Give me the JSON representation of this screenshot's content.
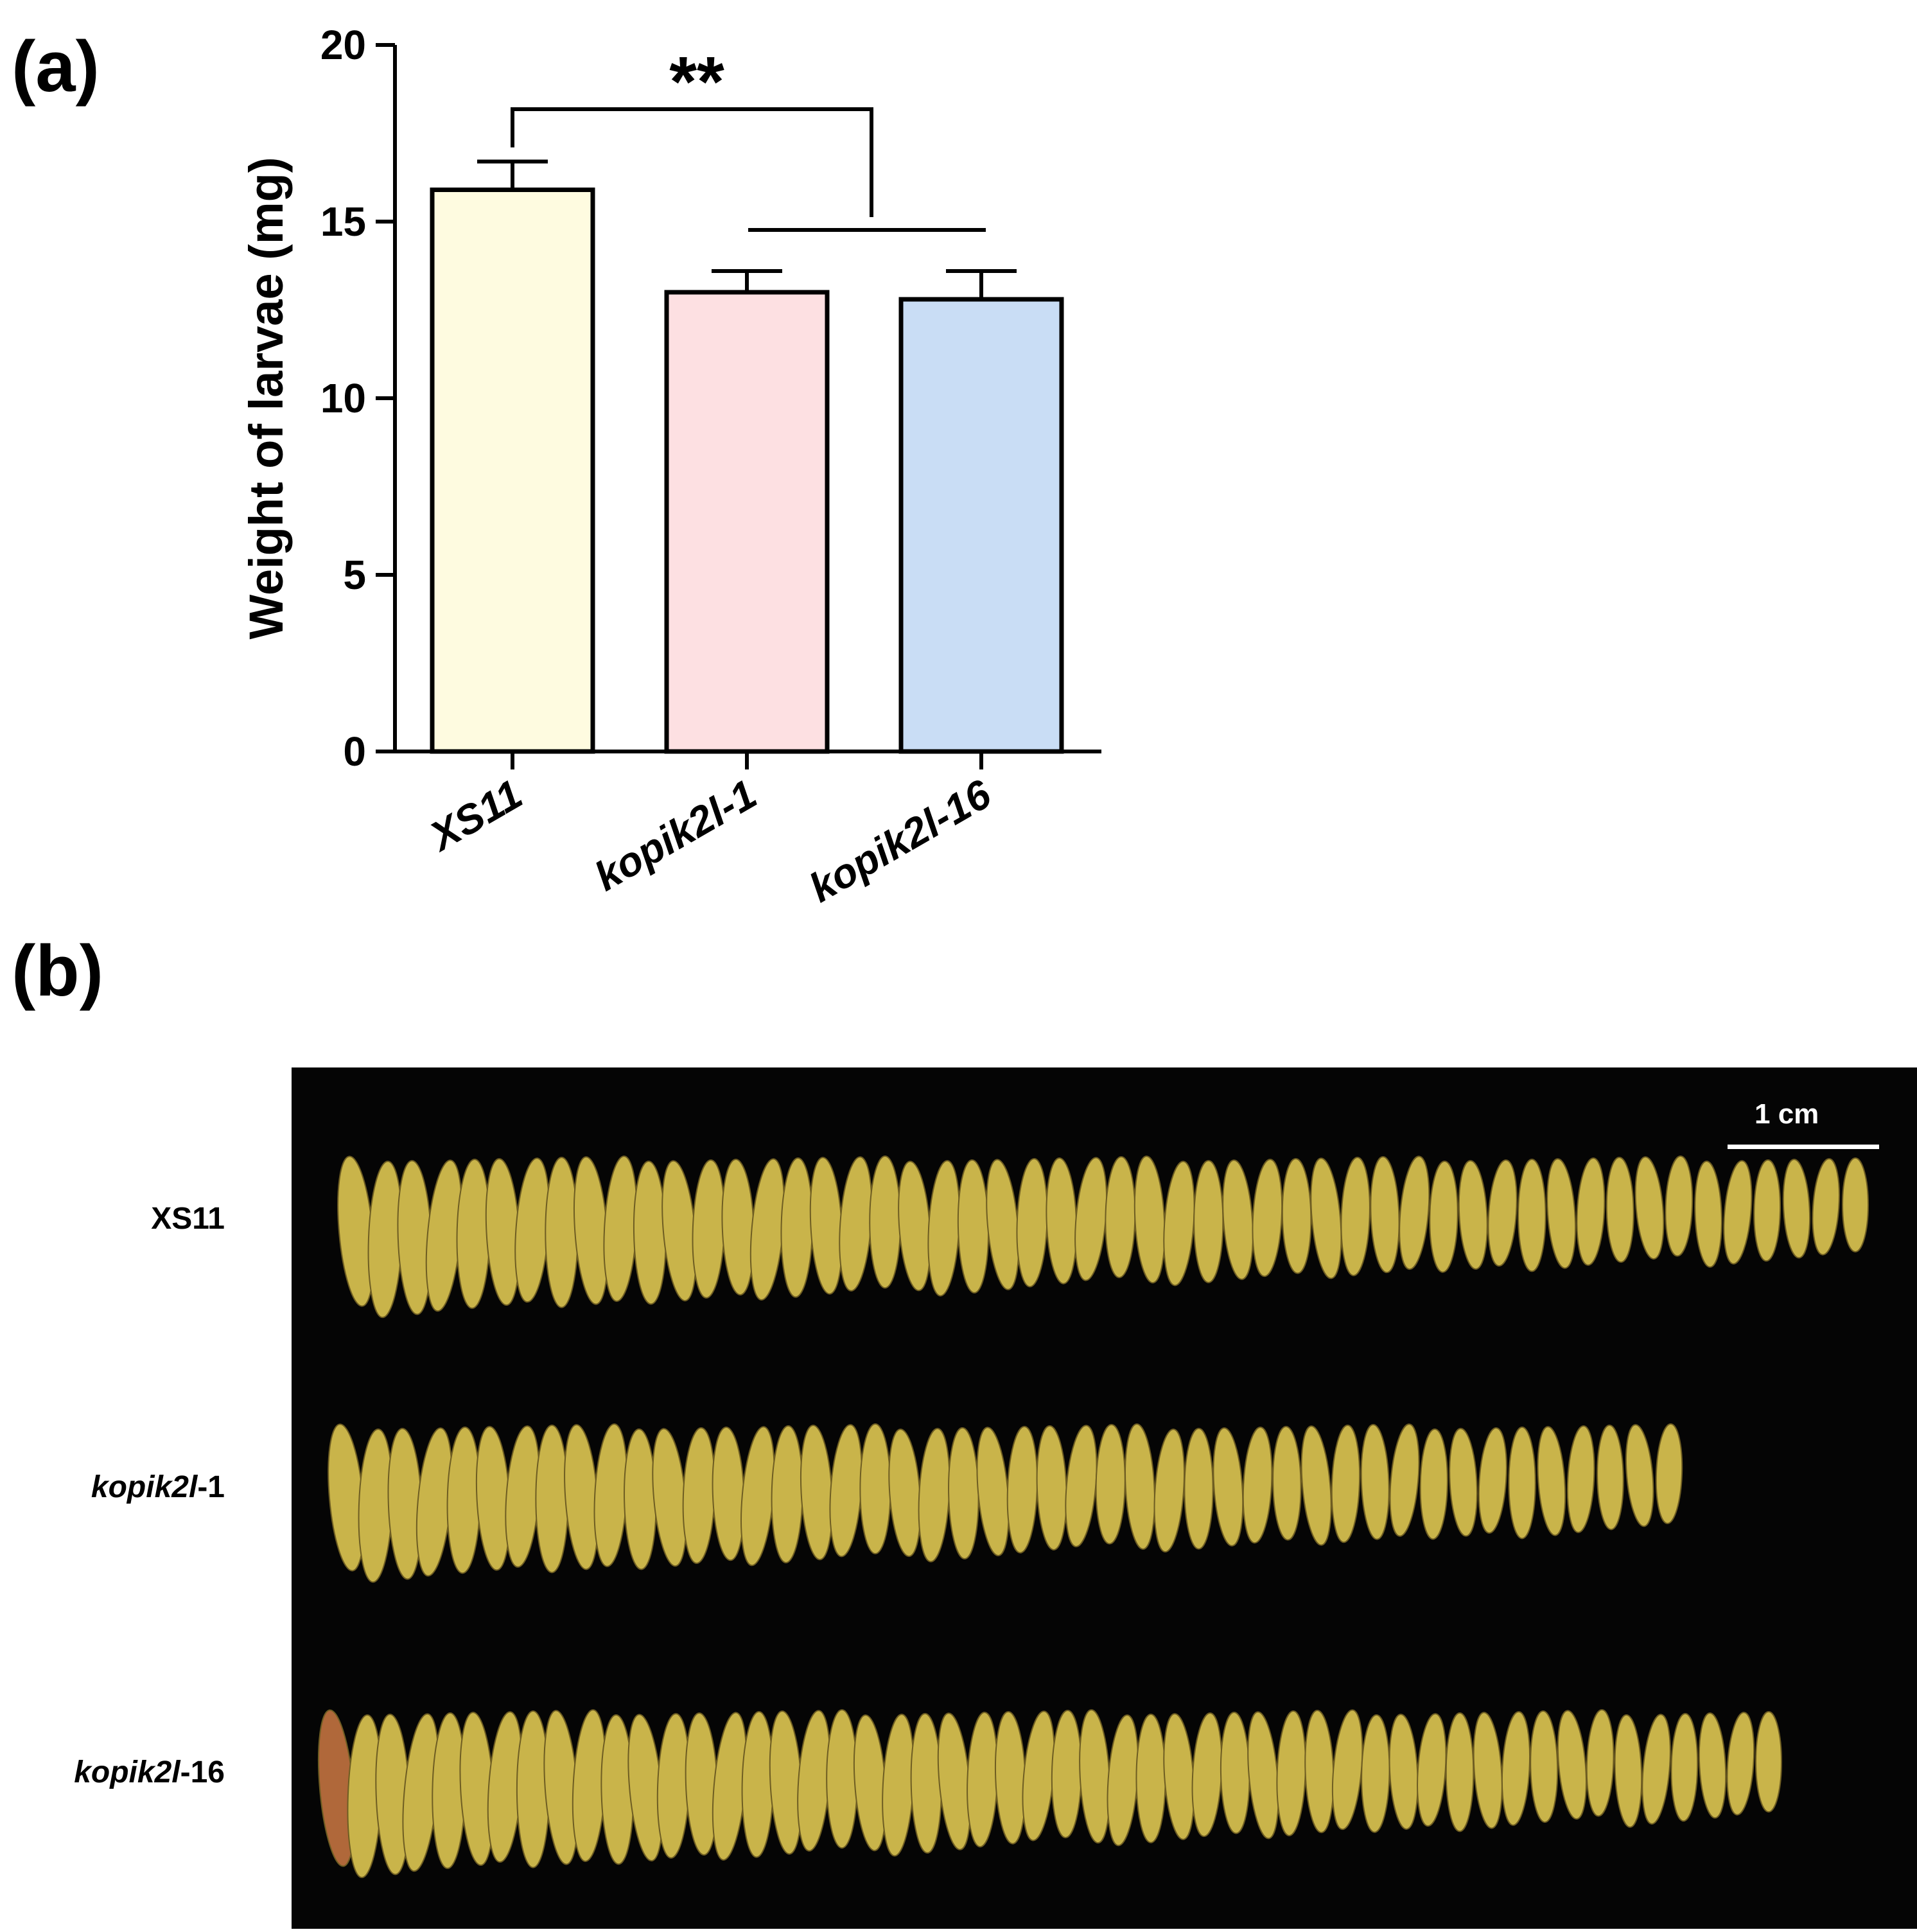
{
  "panels": {
    "a": "(a)",
    "b": "(b)"
  },
  "chart_data": {
    "type": "bar",
    "categories": [
      "XS11",
      "kopik2l-1",
      "kopik2l-16"
    ],
    "values": [
      15.9,
      13.0,
      12.8
    ],
    "errors": [
      0.8,
      0.6,
      0.8
    ],
    "bar_colors": [
      "#fefbe0",
      "#fde0e2",
      "#c9ddf5"
    ],
    "ylabel": "Weight of larvae (mg)",
    "ylim": [
      0,
      20
    ],
    "yticks": [
      0,
      5,
      10,
      15,
      20
    ],
    "grid": false,
    "significance": {
      "label": "**",
      "from": "XS11",
      "to": [
        "kopik2l-1",
        "kopik2l-16"
      ]
    }
  },
  "photo": {
    "rows": [
      {
        "label_main": "kopik2l",
        "label_suffix": "",
        "full": "XS11",
        "count": 52
      },
      {
        "label_main": "kopik2l",
        "label_suffix": "-1",
        "full": "kopik2l-1",
        "count": 46
      },
      {
        "label_main": "kopik2l",
        "label_suffix": "-16",
        "full": "kopik2l-16",
        "count": 52
      }
    ],
    "scale_bar_label": "1 cm",
    "background": "#050505",
    "larva_color": "#c9b44a"
  }
}
